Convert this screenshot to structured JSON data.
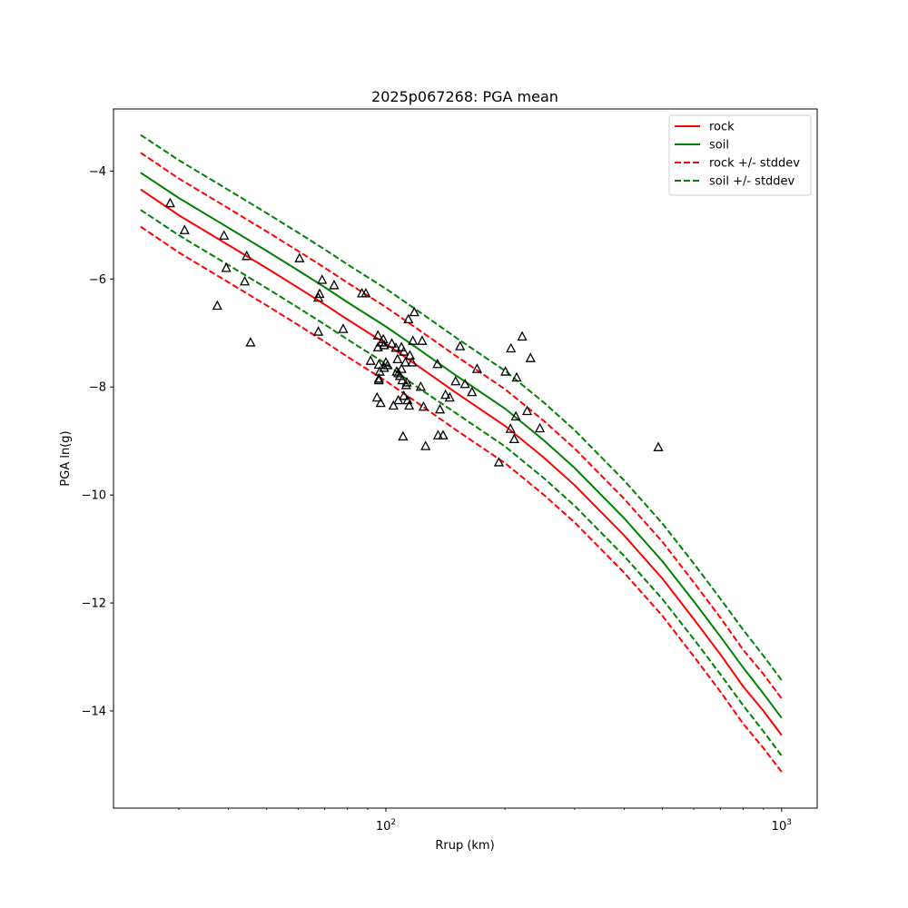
{
  "chart_data": {
    "type": "scatter",
    "title": "2025p067268: PGA mean",
    "xlabel": "Rrup (km)",
    "ylabel": "PGA ln(g)",
    "xscale": "log",
    "xlim": [
      20.5,
      1230
    ],
    "ylim": [
      -15.8,
      -2.85
    ],
    "grid": false,
    "legend_position": "top-right",
    "xticks": [
      {
        "value": 100,
        "base": "10",
        "exp": "2"
      },
      {
        "value": 1000,
        "base": "10",
        "exp": "3"
      }
    ],
    "yticks": [
      -4,
      -6,
      -8,
      -10,
      -12,
      -14
    ],
    "curves": [
      {
        "name": "rock",
        "color": "#ff0000",
        "style": "solid",
        "points": [
          [
            24,
            -4.34
          ],
          [
            30,
            -4.82
          ],
          [
            40,
            -5.37
          ],
          [
            50,
            -5.8
          ],
          [
            60,
            -6.16
          ],
          [
            70,
            -6.47
          ],
          [
            80,
            -6.75
          ],
          [
            100,
            -7.2
          ],
          [
            120,
            -7.6
          ],
          [
            150,
            -8.1
          ],
          [
            200,
            -8.72
          ],
          [
            250,
            -9.3
          ],
          [
            300,
            -9.82
          ],
          [
            400,
            -10.75
          ],
          [
            500,
            -11.55
          ],
          [
            600,
            -12.3
          ],
          [
            700,
            -12.95
          ],
          [
            800,
            -13.55
          ],
          [
            900,
            -14.0
          ],
          [
            1000,
            -14.45
          ]
        ]
      },
      {
        "name": "soil",
        "color": "#008000",
        "style": "solid",
        "points": [
          [
            24,
            -4.03
          ],
          [
            30,
            -4.5
          ],
          [
            40,
            -5.05
          ],
          [
            50,
            -5.48
          ],
          [
            60,
            -5.84
          ],
          [
            70,
            -6.15
          ],
          [
            80,
            -6.43
          ],
          [
            100,
            -6.88
          ],
          [
            120,
            -7.28
          ],
          [
            150,
            -7.78
          ],
          [
            200,
            -8.4
          ],
          [
            250,
            -8.98
          ],
          [
            300,
            -9.5
          ],
          [
            400,
            -10.43
          ],
          [
            500,
            -11.23
          ],
          [
            600,
            -11.97
          ],
          [
            700,
            -12.62
          ],
          [
            800,
            -13.2
          ],
          [
            900,
            -13.68
          ],
          [
            1000,
            -14.13
          ]
        ]
      },
      {
        "name": "rock +/- stddev",
        "color": "#ff0000",
        "style": "dashed",
        "points": [
          [
            24,
            -3.66
          ],
          [
            30,
            -4.14
          ],
          [
            40,
            -4.69
          ],
          [
            50,
            -5.12
          ],
          [
            60,
            -5.48
          ],
          [
            70,
            -5.79
          ],
          [
            80,
            -6.07
          ],
          [
            100,
            -6.52
          ],
          [
            120,
            -6.92
          ],
          [
            150,
            -7.42
          ],
          [
            200,
            -8.04
          ],
          [
            250,
            -8.62
          ],
          [
            300,
            -9.14
          ],
          [
            400,
            -10.07
          ],
          [
            500,
            -10.87
          ],
          [
            600,
            -11.62
          ],
          [
            700,
            -12.27
          ],
          [
            800,
            -12.87
          ],
          [
            900,
            -13.32
          ],
          [
            1000,
            -13.77
          ]
        ]
      },
      {
        "name": "rock +/- stddev",
        "color": "#ff0000",
        "style": "dashed",
        "points": [
          [
            24,
            -5.03
          ],
          [
            30,
            -5.51
          ],
          [
            40,
            -6.06
          ],
          [
            50,
            -6.49
          ],
          [
            60,
            -6.85
          ],
          [
            70,
            -7.16
          ],
          [
            80,
            -7.44
          ],
          [
            100,
            -7.89
          ],
          [
            120,
            -8.29
          ],
          [
            150,
            -8.79
          ],
          [
            200,
            -9.41
          ],
          [
            250,
            -9.99
          ],
          [
            300,
            -10.51
          ],
          [
            400,
            -11.44
          ],
          [
            500,
            -12.24
          ],
          [
            600,
            -12.99
          ],
          [
            700,
            -13.64
          ],
          [
            800,
            -14.24
          ],
          [
            900,
            -14.69
          ],
          [
            1000,
            -15.13
          ]
        ]
      },
      {
        "name": "soil +/- stddev",
        "color": "#008000",
        "style": "dashed",
        "points": [
          [
            24,
            -3.33
          ],
          [
            30,
            -3.8
          ],
          [
            40,
            -4.35
          ],
          [
            50,
            -4.78
          ],
          [
            60,
            -5.14
          ],
          [
            70,
            -5.45
          ],
          [
            80,
            -5.73
          ],
          [
            100,
            -6.18
          ],
          [
            120,
            -6.58
          ],
          [
            150,
            -7.08
          ],
          [
            200,
            -7.7
          ],
          [
            250,
            -8.28
          ],
          [
            300,
            -8.8
          ],
          [
            400,
            -9.73
          ],
          [
            500,
            -10.53
          ],
          [
            600,
            -11.27
          ],
          [
            700,
            -11.92
          ],
          [
            800,
            -12.5
          ],
          [
            900,
            -12.98
          ],
          [
            1000,
            -13.43
          ]
        ]
      },
      {
        "name": "soil +/- stddev",
        "color": "#008000",
        "style": "dashed",
        "points": [
          [
            24,
            -4.72
          ],
          [
            30,
            -5.19
          ],
          [
            40,
            -5.74
          ],
          [
            50,
            -6.17
          ],
          [
            60,
            -6.53
          ],
          [
            70,
            -6.84
          ],
          [
            80,
            -7.12
          ],
          [
            100,
            -7.57
          ],
          [
            120,
            -8.0
          ],
          [
            150,
            -8.48
          ],
          [
            200,
            -9.1
          ],
          [
            250,
            -9.68
          ],
          [
            300,
            -10.2
          ],
          [
            400,
            -11.13
          ],
          [
            500,
            -11.93
          ],
          [
            600,
            -12.67
          ],
          [
            700,
            -13.32
          ],
          [
            800,
            -13.9
          ],
          [
            900,
            -14.38
          ],
          [
            1000,
            -14.83
          ]
        ]
      }
    ],
    "legend": [
      {
        "label": "rock",
        "color": "#ff0000",
        "style": "solid"
      },
      {
        "label": "soil",
        "color": "#008000",
        "style": "solid"
      },
      {
        "label": "rock +/- stddev",
        "color": "#ff0000",
        "style": "dashed"
      },
      {
        "label": "soil +/- stddev",
        "color": "#008000",
        "style": "dashed"
      }
    ],
    "observations": {
      "marker": "triangle-open",
      "color": "#000000",
      "points": [
        [
          28.5,
          -4.6
        ],
        [
          31,
          -5.1
        ],
        [
          37.5,
          -6.5
        ],
        [
          39,
          -5.2
        ],
        [
          39.5,
          -5.8
        ],
        [
          44,
          -6.05
        ],
        [
          44.5,
          -5.58
        ],
        [
          45.5,
          -7.18
        ],
        [
          60.5,
          -5.62
        ],
        [
          67.5,
          -6.98
        ],
        [
          67.5,
          -6.35
        ],
        [
          68,
          -6.28
        ],
        [
          69,
          -6.02
        ],
        [
          74,
          -6.12
        ],
        [
          78,
          -6.93
        ],
        [
          87,
          -6.27
        ],
        [
          89,
          -6.27
        ],
        [
          91.5,
          -7.52
        ],
        [
          95,
          -8.2
        ],
        [
          95.5,
          -7.05
        ],
        [
          95.5,
          -7.27
        ],
        [
          96,
          -7.59
        ],
        [
          96,
          -7.88
        ],
        [
          96,
          -7.85
        ],
        [
          96.5,
          -7.72
        ],
        [
          97,
          -8.3
        ],
        [
          97.5,
          -7.18
        ],
        [
          98.5,
          -7.12
        ],
        [
          99,
          -7.23
        ],
        [
          99,
          -7.65
        ],
        [
          100,
          -7.55
        ],
        [
          101,
          -7.6
        ],
        [
          103.5,
          -7.2
        ],
        [
          104.5,
          -8.35
        ],
        [
          106,
          -7.28
        ],
        [
          106.5,
          -7.72
        ],
        [
          107,
          -7.49
        ],
        [
          107.5,
          -7.75
        ],
        [
          107.5,
          -8.25
        ],
        [
          108.5,
          -7.8
        ],
        [
          109.5,
          -7.67
        ],
        [
          109.5,
          -7.27
        ],
        [
          110,
          -7.88
        ],
        [
          110.5,
          -8.92
        ],
        [
          111,
          -8.17
        ],
        [
          111,
          -7.35
        ],
        [
          112,
          -7.55
        ],
        [
          112.5,
          -7.97
        ],
        [
          113,
          -7.92
        ],
        [
          113.5,
          -8.25
        ],
        [
          114,
          -6.75
        ],
        [
          114.5,
          -8.35
        ],
        [
          115,
          -7.42
        ],
        [
          116.5,
          -7.55
        ],
        [
          117,
          -7.15
        ],
        [
          118,
          -6.62
        ],
        [
          122.5,
          -8.0
        ],
        [
          123.5,
          -7.15
        ],
        [
          124.5,
          -8.37
        ],
        [
          126,
          -9.1
        ],
        [
          135,
          -7.58
        ],
        [
          135.5,
          -8.9
        ],
        [
          137,
          -8.42
        ],
        [
          139.5,
          -8.9
        ],
        [
          141.5,
          -8.15
        ],
        [
          145,
          -8.2
        ],
        [
          150,
          -7.9
        ],
        [
          154,
          -7.25
        ],
        [
          158.5,
          -7.95
        ],
        [
          165,
          -8.1
        ],
        [
          170,
          -7.67
        ],
        [
          193,
          -9.4
        ],
        [
          200.5,
          -7.72
        ],
        [
          206.5,
          -8.78
        ],
        [
          207,
          -7.29
        ],
        [
          211,
          -8.97
        ],
        [
          213,
          -8.55
        ],
        [
          214,
          -7.83
        ],
        [
          221,
          -7.07
        ],
        [
          227.5,
          -8.45
        ],
        [
          232,
          -7.47
        ],
        [
          245,
          -8.77
        ],
        [
          488,
          -9.12
        ]
      ]
    }
  }
}
